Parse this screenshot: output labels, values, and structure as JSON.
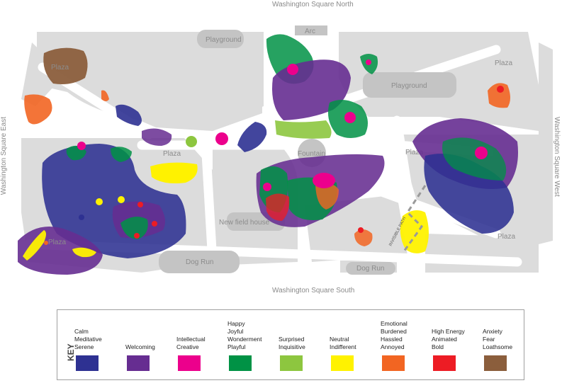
{
  "streets": {
    "north": "Washington Square North",
    "south": "Washington Square South",
    "east": "Washington Square East",
    "west": "Washington Square West"
  },
  "places": {
    "arch": "Arc",
    "playground_1": "Playground",
    "playground_2": "Playground",
    "plaza_nw": "Plaza",
    "plaza_w": "Plaza",
    "plaza_center_left": "Plaza",
    "plaza_center_right": "Plaza",
    "plaza_ne": "Plaza",
    "plaza_se": "Plaza",
    "fountain": "Fountain",
    "field_house": "New field house",
    "dog_run_1": "Dog Run",
    "dog_run_2": "Dog Run",
    "path_label": "INVISIBLE PATH"
  },
  "key": {
    "title": "KEY",
    "items": [
      {
        "label": "Calm\nMeditative\nSerene",
        "color": "#2e3192"
      },
      {
        "label": "Welcoming",
        "color": "#662d91"
      },
      {
        "label": "Intellectual\nCreative",
        "color": "#ec008c"
      },
      {
        "label": "Happy\nJoyful\nWonderment\nPlayful",
        "color": "#009245"
      },
      {
        "label": "Surprised\nInquisitive",
        "color": "#8dc63f"
      },
      {
        "label": "Neutral\nIndifferent",
        "color": "#fff200"
      },
      {
        "label": "Emotional\nBurdened\nHassled\nAnnoyed",
        "color": "#f26522"
      },
      {
        "label": "High Energy\nAnimated\nBold",
        "color": "#ed1c24"
      },
      {
        "label": "Anxiety\nFear\nLoathsome",
        "color": "#8b5e3c"
      }
    ]
  }
}
